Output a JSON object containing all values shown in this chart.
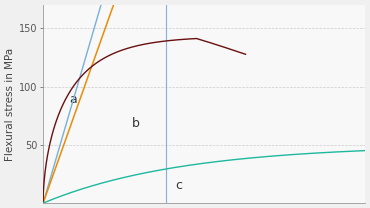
{
  "ylabel": "Flexural stress in MPa",
  "ylabel_fontsize": 7.5,
  "bg_color": "#f0f0f0",
  "plot_bg_color": "#f8f8f8",
  "grid_color": "#c8c8c8",
  "ylim": [
    0,
    170
  ],
  "xlim": [
    0,
    10.5
  ],
  "yticks": [
    50,
    100,
    150
  ],
  "curve_a_blue_color": "#7ab0d4",
  "curve_a_orange_color": "#e88c0a",
  "curve_b_color": "#6b0f0f",
  "curve_c_color": "#1eb89e",
  "vline_color": "#8ab0d8",
  "label_a": "a",
  "label_b": "b",
  "label_c": "c",
  "label_fontsize": 9,
  "label_color": "#333333"
}
